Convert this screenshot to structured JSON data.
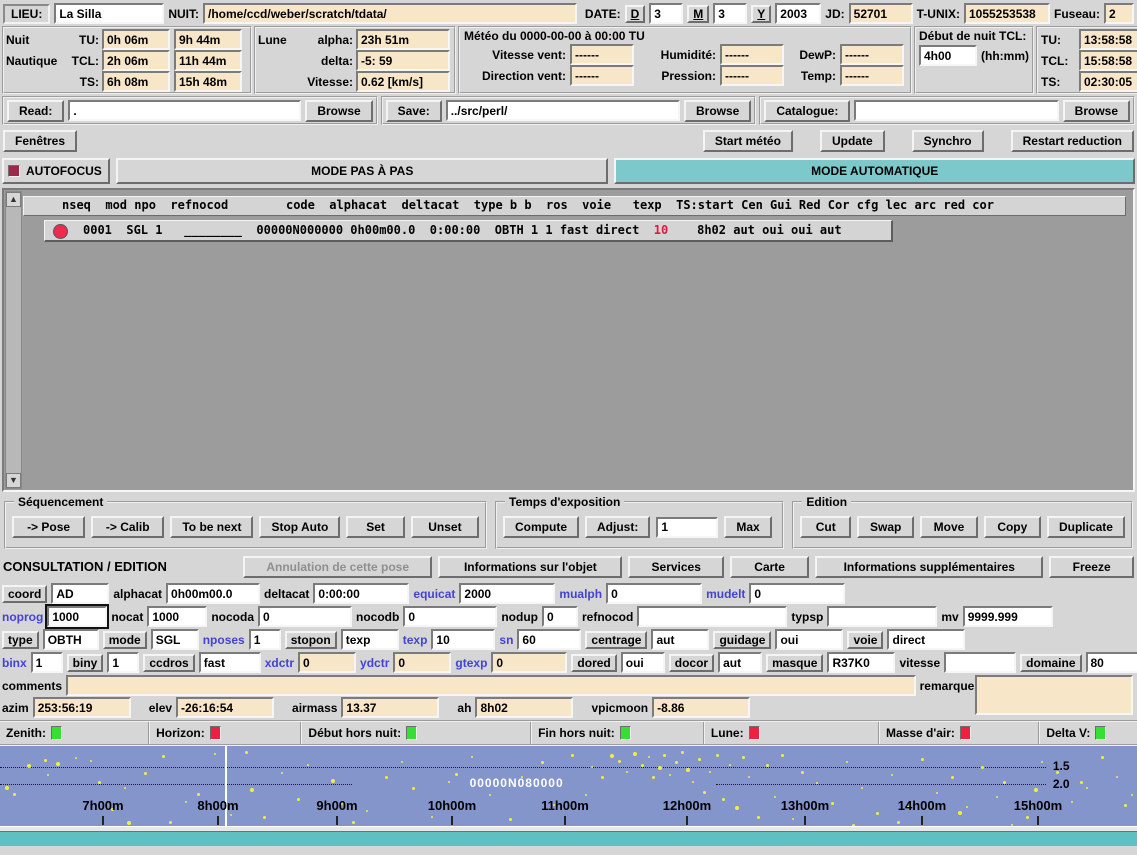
{
  "colors": {
    "accent_teal": "#7cc8ca",
    "field_tan": "#f8e6c8",
    "timeline_blue": "#8495cb",
    "alert_red": "#ee2a50",
    "ok_green": "#35e035",
    "label_blue": "#4343d6"
  },
  "top": {
    "lieu_label": "LIEU:",
    "lieu_value": "La Silla",
    "nuit_label": "NUIT:",
    "nuit_value": "/home/ccd/weber/scratch/tdata/",
    "date_label": "DATE:",
    "d_label": "D",
    "d_value": "3",
    "m_label": "M",
    "m_value": "3",
    "y_label": "Y",
    "y_value": "2003",
    "jd_label": "JD:",
    "jd_value": "52701",
    "tunix_label": "T-UNIX:",
    "tunix_value": "1055253538",
    "fuseau_label": "Fuseau:",
    "fuseau_value": "2"
  },
  "night": {
    "rows": [
      {
        "name": "Nuit",
        "tl": "TU:",
        "v1": "0h 06m",
        "v2": "9h 44m"
      },
      {
        "name": "Nautique",
        "tl": "TCL:",
        "v1": "2h 06m",
        "v2": "11h 44m"
      },
      {
        "name": "",
        "tl": "TS:",
        "v1": "6h 08m",
        "v2": "15h 48m"
      }
    ]
  },
  "lune": {
    "title": "Lune",
    "rows": [
      {
        "label": "alpha:",
        "value": "23h 51m"
      },
      {
        "label": "delta:",
        "value": "-5: 59"
      },
      {
        "label": "Vitesse:",
        "value": "0.62 [km/s]"
      }
    ]
  },
  "meteo": {
    "title": "Météo du  0000-00-00  à  00:00 TU",
    "f1": {
      "label": "Vitesse vent:",
      "value": "------"
    },
    "f2": {
      "label": "Humidité:",
      "value": "------"
    },
    "f3": {
      "label": "DewP:",
      "value": "------"
    },
    "f4": {
      "label": "Direction vent:",
      "value": "------"
    },
    "f5": {
      "label": "Pression:",
      "value": "------"
    },
    "f6": {
      "label": "Temp:",
      "value": "------"
    }
  },
  "debut": {
    "title": "Début de nuit TCL:",
    "value": "4h00",
    "hint": "(hh:mm)"
  },
  "clock": {
    "rows": [
      {
        "label": "TU:",
        "value": "13:58:58"
      },
      {
        "label": "TCL:",
        "value": "15:58:58"
      },
      {
        "label": "TS:",
        "value": "02:30:05"
      }
    ]
  },
  "files": {
    "read_label": "Read:",
    "read_value": ".",
    "save_label": "Save:",
    "save_value": "../src/perl/",
    "cat_label": "Catalogue:",
    "cat_value": "",
    "browse_label": "Browse"
  },
  "actions": {
    "fenetres": "Fenêtres",
    "start_meteo": "Start météo",
    "update": "Update",
    "synchro": "Synchro",
    "restart": "Restart reduction"
  },
  "modes": {
    "autofocus": "AUTOFOCUS",
    "pas_a_pas": "MODE PAS À PAS",
    "automatique": "MODE AUTOMATIQUE"
  },
  "table": {
    "header": "nseq  mod npo  refnocod        code  alphacat  deltacat  type b b  ros  voie   texp  TS:start Cen Gui Red Cor cfg lec arc red cor",
    "row": {
      "pre": "0001  SGL 1   ________  00000N000000 0h00m00.0  0:00:00  OBTH 1 1 fast direct  ",
      "texp": "10",
      "post": "    8h02 aut oui oui aut"
    }
  },
  "sequencement": {
    "title": "Séquencement",
    "buttons": [
      "-> Pose",
      "-> Calib",
      "To be next",
      "Stop Auto",
      "Set",
      "Unset"
    ]
  },
  "exposition": {
    "title": "Temps d'exposition",
    "compute": "Compute",
    "adjust": "Adjust:",
    "adjust_value": "1",
    "max": "Max"
  },
  "edition": {
    "title": "Edition",
    "buttons": [
      "Cut",
      "Swap",
      "Move",
      "Copy",
      "Duplicate"
    ]
  },
  "consultation": {
    "title": "CONSULTATION / EDITION",
    "annulation": "Annulation de cette pose",
    "info_objet": "Informations sur l'objet",
    "services": "Services",
    "carte": "Carte",
    "info_supp": "Informations supplémentaires",
    "freeze": "Freeze"
  },
  "form": {
    "coord": {
      "label": "coord",
      "value": "AD"
    },
    "alphacat": {
      "label": "alphacat",
      "value": "0h00m00.0"
    },
    "deltacat": {
      "label": "deltacat",
      "value": "0:00:00"
    },
    "equicat": {
      "label": "equicat",
      "value": "2000"
    },
    "mualph": {
      "label": "mualph",
      "value": "0"
    },
    "mudelt": {
      "label": "mudelt",
      "value": "0"
    },
    "noprog": {
      "label": "noprog",
      "value": "1000"
    },
    "nocat": {
      "label": "nocat",
      "value": "1000"
    },
    "nocoda": {
      "label": "nocoda",
      "value": "0"
    },
    "nocodb": {
      "label": "nocodb",
      "value": "0"
    },
    "nodup": {
      "label": "nodup",
      "value": "0"
    },
    "refnocod": {
      "label": "refnocod",
      "value": ""
    },
    "typsp": {
      "label": "typsp",
      "value": ""
    },
    "mv": {
      "label": "mv",
      "value": "9999.999"
    },
    "type": {
      "label": "type",
      "value": "OBTH"
    },
    "mode": {
      "label": "mode",
      "value": "SGL"
    },
    "nposes": {
      "label": "nposes",
      "value": "1"
    },
    "stopon": {
      "label": "stopon",
      "value": "texp"
    },
    "texp": {
      "label": "texp",
      "value": "10"
    },
    "sn": {
      "label": "sn",
      "value": "60"
    },
    "centrage": {
      "label": "centrage",
      "value": "aut"
    },
    "guidage": {
      "label": "guidage",
      "value": "oui"
    },
    "voie": {
      "label": "voie",
      "value": "direct"
    },
    "binx": {
      "label": "binx",
      "value": "1"
    },
    "biny": {
      "label": "biny",
      "value": "1"
    },
    "ccdros": {
      "label": "ccdros",
      "value": "fast"
    },
    "xdctr": {
      "label": "xdctr",
      "value": "0"
    },
    "ydctr": {
      "label": "ydctr",
      "value": "0"
    },
    "gtexp": {
      "label": "gtexp",
      "value": "0"
    },
    "dored": {
      "label": "dored",
      "value": "oui"
    },
    "docor": {
      "label": "docor",
      "value": "aut"
    },
    "masque": {
      "label": "masque",
      "value": "R37K0"
    },
    "vitesse": {
      "label": "vitesse",
      "value": ""
    },
    "domaine": {
      "label": "domaine",
      "value": "80"
    },
    "comments": {
      "label": "comments",
      "value": ""
    },
    "remarques": {
      "label": "remarques",
      "value": ""
    },
    "azim": {
      "label": "azim",
      "value": "253:56:19"
    },
    "elev": {
      "label": "elev",
      "value": "-26:16:54"
    },
    "airmass": {
      "label": "airmass",
      "value": "13.37"
    },
    "ah": {
      "label": "ah",
      "value": "8h02"
    },
    "vpicmoon": {
      "label": "vpicmoon",
      "value": "-8.86"
    }
  },
  "status": {
    "items": [
      {
        "label": "Zenith:",
        "color": "#35e035"
      },
      {
        "label": "Horizon:",
        "color": "#ee2040"
      },
      {
        "label": "Début hors nuit:",
        "color": "#35e035"
      },
      {
        "label": "Fin hors nuit:",
        "color": "#35e035"
      },
      {
        "label": "Lune:",
        "color": "#ee2040"
      },
      {
        "label": "Masse d'air:",
        "color": "#ee2040"
      },
      {
        "label": "Delta V:",
        "color": "#35e035"
      }
    ]
  },
  "timeline": {
    "object_label": "00000N080000",
    "airmass_labels": [
      "1.5",
      "2.0"
    ],
    "marker_x_percent": 19.75,
    "ticks": [
      {
        "label": "7h00m",
        "x": 9.06
      },
      {
        "label": "8h00m",
        "x": 19.17
      },
      {
        "label": "9h00m",
        "x": 29.64
      },
      {
        "label": "10h00m",
        "x": 39.75
      },
      {
        "label": "11h00m",
        "x": 49.69
      },
      {
        "label": "12h00m",
        "x": 60.42
      },
      {
        "label": "13h00m",
        "x": 70.8
      },
      {
        "label": "14h00m",
        "x": 81.09
      },
      {
        "label": "15h00m",
        "x": 91.29
      }
    ],
    "stars": [
      [
        5,
        40,
        4
      ],
      [
        13,
        47,
        3
      ],
      [
        27,
        18,
        4
      ],
      [
        44,
        13,
        3
      ],
      [
        56,
        16,
        4
      ],
      [
        75,
        11,
        2
      ],
      [
        47,
        28,
        2
      ],
      [
        90,
        14,
        2
      ],
      [
        98,
        35,
        3
      ],
      [
        111,
        62,
        3
      ],
      [
        124,
        41,
        2
      ],
      [
        127,
        75,
        4
      ],
      [
        144,
        26,
        3
      ],
      [
        162,
        9,
        3
      ],
      [
        169,
        75,
        3
      ],
      [
        185,
        55,
        2
      ],
      [
        197,
        47,
        3
      ],
      [
        214,
        7,
        2
      ],
      [
        230,
        68,
        2
      ],
      [
        245,
        5,
        3
      ],
      [
        250,
        42,
        4
      ],
      [
        263,
        70,
        3
      ],
      [
        281,
        26,
        2
      ],
      [
        297,
        52,
        3
      ],
      [
        307,
        18,
        2
      ],
      [
        331,
        33,
        4
      ],
      [
        340,
        56,
        3
      ],
      [
        352,
        75,
        3
      ],
      [
        366,
        64,
        2
      ],
      [
        385,
        30,
        3
      ],
      [
        401,
        15,
        2
      ],
      [
        412,
        41,
        3
      ],
      [
        431,
        70,
        2
      ],
      [
        448,
        35,
        2
      ],
      [
        455,
        27,
        3
      ],
      [
        471,
        10,
        2
      ],
      [
        489,
        48,
        2
      ],
      [
        509,
        72,
        3
      ],
      [
        521,
        30,
        2
      ],
      [
        541,
        15,
        3
      ],
      [
        553,
        58,
        2
      ],
      [
        571,
        8,
        3
      ],
      [
        585,
        48,
        2
      ],
      [
        591,
        20,
        2
      ],
      [
        601,
        30,
        3
      ],
      [
        610,
        8,
        4
      ],
      [
        618,
        14,
        3
      ],
      [
        626,
        25,
        2
      ],
      [
        633,
        6,
        4
      ],
      [
        641,
        18,
        3
      ],
      [
        648,
        10,
        2
      ],
      [
        652,
        30,
        3
      ],
      [
        658,
        20,
        4
      ],
      [
        663,
        8,
        3
      ],
      [
        669,
        28,
        2
      ],
      [
        675,
        15,
        3
      ],
      [
        681,
        5,
        3
      ],
      [
        686,
        22,
        4
      ],
      [
        692,
        35,
        2
      ],
      [
        698,
        12,
        3
      ],
      [
        703,
        45,
        3
      ],
      [
        709,
        25,
        2
      ],
      [
        716,
        8,
        3
      ],
      [
        722,
        52,
        3
      ],
      [
        729,
        18,
        2
      ],
      [
        735,
        60,
        4
      ],
      [
        742,
        10,
        3
      ],
      [
        748,
        30,
        2
      ],
      [
        757,
        70,
        3
      ],
      [
        766,
        18,
        3
      ],
      [
        774,
        50,
        2
      ],
      [
        781,
        8,
        3
      ],
      [
        792,
        72,
        2
      ],
      [
        801,
        25,
        3
      ],
      [
        816,
        36,
        2
      ],
      [
        831,
        56,
        3
      ],
      [
        846,
        15,
        2
      ],
      [
        852,
        78,
        3
      ],
      [
        861,
        41,
        2
      ],
      [
        876,
        66,
        3
      ],
      [
        891,
        28,
        2
      ],
      [
        897,
        75,
        3
      ],
      [
        907,
        60,
        2
      ],
      [
        921,
        12,
        3
      ],
      [
        936,
        46,
        2
      ],
      [
        951,
        30,
        3
      ],
      [
        958,
        65,
        4
      ],
      [
        966,
        60,
        2
      ],
      [
        981,
        20,
        3
      ],
      [
        996,
        50,
        2
      ],
      [
        1003,
        35,
        3
      ],
      [
        1011,
        78,
        2
      ],
      [
        1026,
        70,
        3
      ],
      [
        1034,
        42,
        4
      ],
      [
        1041,
        15,
        2
      ],
      [
        1056,
        25,
        3
      ],
      [
        1071,
        55,
        2
      ],
      [
        1080,
        35,
        3
      ],
      [
        1086,
        41,
        2
      ],
      [
        1101,
        10,
        3
      ],
      [
        1116,
        30,
        2
      ],
      [
        1124,
        58,
        3
      ],
      [
        1131,
        48,
        2
      ]
    ]
  }
}
